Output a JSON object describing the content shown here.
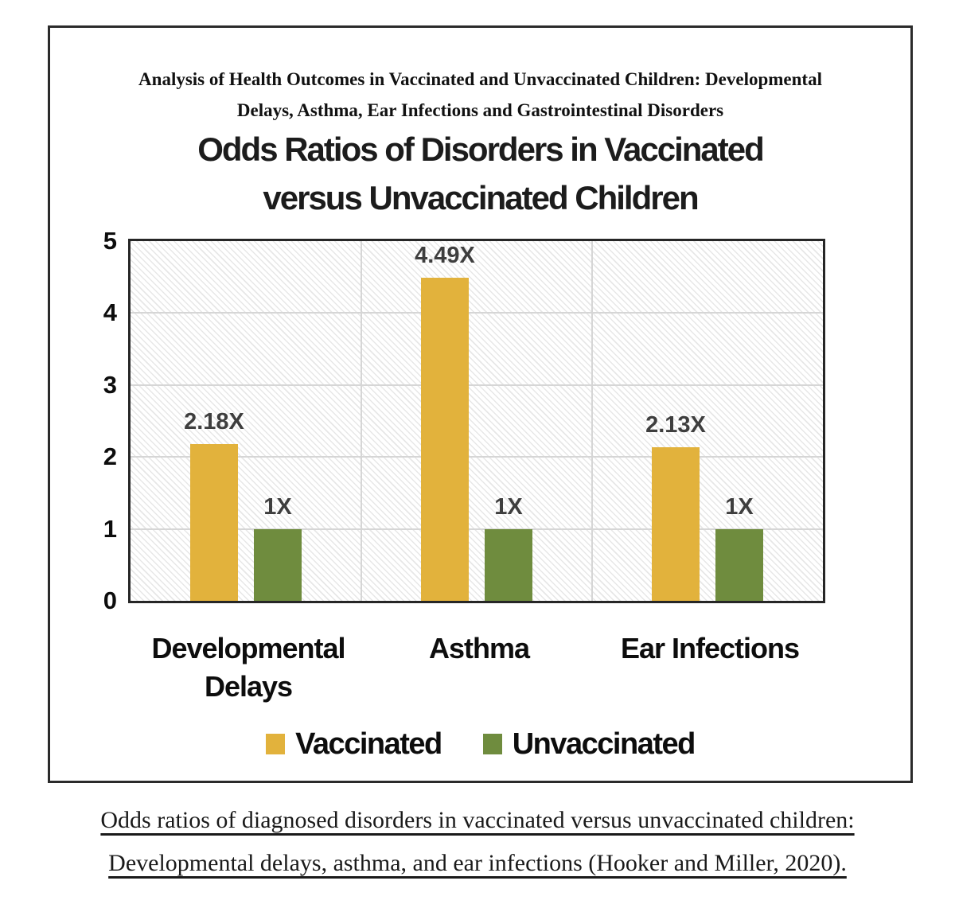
{
  "figure": {
    "header": {
      "lines": [
        "Analysis of Health Outcomes in Vaccinated and Unvaccinated Children: Developmental",
        "Delays, Asthma, Ear Infections and Gastrointestinal Disorders"
      ]
    },
    "title": {
      "lines": [
        "Odds Ratios of Disorders in Vaccinated",
        "versus Unvaccinated Children"
      ]
    }
  },
  "chart_data": {
    "type": "bar",
    "title": "Odds Ratios of Disorders in Vaccinated versus Unvaccinated Children",
    "categories": [
      "Developmental Delays",
      "Asthma",
      "Ear Infections"
    ],
    "series": [
      {
        "name": "Vaccinated",
        "color": "#E2B23C",
        "values": [
          2.18,
          4.49,
          2.13
        ],
        "value_labels": [
          "2.18X",
          "4.49X",
          "2.13X"
        ]
      },
      {
        "name": "Unvaccinated",
        "color": "#6F8C3E",
        "values": [
          1,
          1,
          1
        ],
        "value_labels": [
          "1X",
          "1X",
          "1X"
        ]
      }
    ],
    "xlabel": "",
    "ylabel": "",
    "ylim": [
      0,
      5
    ],
    "yticks": [
      0,
      1,
      2,
      3,
      4,
      5
    ],
    "grid": true,
    "legend_position": "bottom",
    "value_label_color": "#3E3E3E",
    "plot_border_color": "#262626"
  },
  "caption": {
    "lines": [
      "Odds ratios of diagnosed disorders in vaccinated versus unvaccinated children:",
      "Developmental delays, asthma, and ear infections (Hooker and Miller, 2020)."
    ]
  }
}
